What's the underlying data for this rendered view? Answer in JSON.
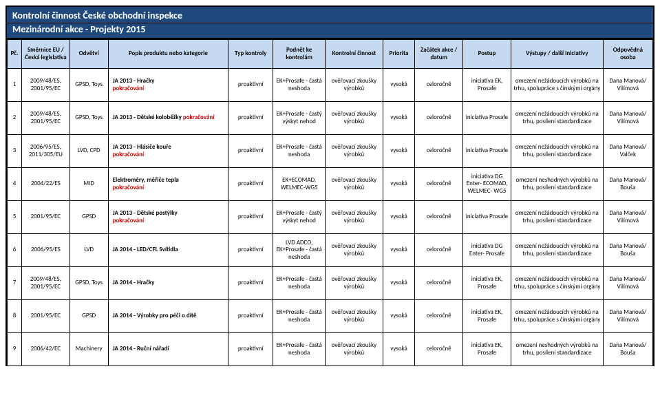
{
  "header": {
    "title": "Kontrolní činnost České obchodní inspekce",
    "subtitle": "Mezinárodní akce - Projekty 2015"
  },
  "columns": [
    "Pč.",
    "Směrnice EU / Česká legislativa",
    "Odvětví",
    "Popis produktu nebo kategorie",
    "Typ kontroly",
    "Podnět ke kontrolám",
    "Kontrolní činnost",
    "Priorita",
    "Začátek akce / datum",
    "Postup",
    "Výstupy / další iniciativy",
    "Odpovědná osoba"
  ],
  "rows": [
    {
      "pc": "1",
      "dir": "2009/48/ES, 2001/95/EC",
      "odv": "GPSD,   Toys",
      "popis_b": "JA 2013 - Hračky",
      "popis_r": "pokračování",
      "typ": "proaktivní",
      "pod": "EK+Prosafe - častá neshoda",
      "cin": "ověřovací zkoušky výrobků",
      "prio": "vysoká",
      "zac": "celoročně",
      "post": "iniciativa EK, Prosafe",
      "vys": "omezení nežádoucích výrobků na trhu, spolupráce s čínskými orgány",
      "odp": "Dana Manová/ Vilímová"
    },
    {
      "pc": "2",
      "dir": "2009/48/ES, 2001/95/EC",
      "odv": "GPSD, Toys",
      "popis_b": "JA 2013 - Dětské koloběžky ",
      "popis_r": "pokračování",
      "popis_inline": true,
      "typ": "proaktivní",
      "pod": "EK+Prosafe - častý výskyt nehod",
      "cin": "ověřovací zkoušky výrobků",
      "prio": "vysoká",
      "zac": "celoročně",
      "post": "iniciativa Prosafe",
      "vys": "omezení nežádoucích výrobků na trhu, posílení standardizace",
      "odp": "Dana Manová/ Vilímová"
    },
    {
      "pc": "3",
      "dir": "2006/95/ES, 2011/305/EU",
      "odv": "LVD, CPD",
      "popis_b": "JA 2013 - Hlásiče kouře",
      "popis_r": "pokračování",
      "typ": "proaktivní",
      "pod": "EK+Prosafe - častá neshoda",
      "cin": "ověřovací zkoušky výrobků",
      "prio": "vysoká",
      "zac": "celoročně",
      "post": "iniciativa Prosafe",
      "vys": "omezení nežádoucích výrobků na trhu, posílení standardizace",
      "odp": "Dana Manová/ Valček"
    },
    {
      "pc": "4",
      "dir": "2004/22/ES",
      "odv": "MID",
      "popis_b": "Elektroměry, měřiče tepla",
      "popis_r": "pokračování",
      "typ": "proaktivní",
      "pod": "EK+ECOMAD, WELMEC-WG5",
      "cin": "ověřovací zkoušky výrobků",
      "prio": "vysoká",
      "zac": "celoročně",
      "post": "iniciativa DG Enter- ECOMAD, WELMEC- WG5",
      "vys": "omezení neshodných výrobků na trhu, posílení standardizace",
      "odp": "Dana Manová/ Bouša"
    },
    {
      "pc": "5",
      "dir": "2001/95/EC",
      "odv": "GPSD",
      "popis_b": "JA 2013 - Dětské postýlky",
      "popis_r": "pokračování",
      "typ": "proaktivní",
      "pod": "EK+Prosafe - častý výskyt nehod",
      "cin": "ověřovací zkoušky výrobků",
      "prio": "vysoká",
      "zac": "celoročně",
      "post": "iniciativa Prosafe",
      "vys": "omezení nežádoucích výrobků na trhu, posílení standardizace",
      "odp": "Dana Manová/ Vilímová"
    },
    {
      "pc": "6",
      "dir": "2006/95/ES",
      "odv": "LVD",
      "popis_b": "JA 2014 - LED/CFL Svítidla",
      "popis_r": "",
      "typ": "proaktivní",
      "pod": "LVD ADCO, EK+Prosafe - častá neshoda",
      "cin": "ověřovací zkoušky výrobků",
      "prio": "vysoká",
      "zac": "celoročně",
      "post": "iniciativa DG Enter- Prosafe",
      "vys": "omezení nežádoucích výrobků na trhu, posílení standardizace",
      "odp": "Dana Manová/ Bouša"
    },
    {
      "pc": "7",
      "dir": "2009/48/ES, 2001/95/EC",
      "odv": "GPSD, Toys",
      "popis_b": "JA 2014 - Hračky",
      "popis_r": "",
      "typ": "proaktivní",
      "pod": "EK+Prosafe - častá neshoda",
      "cin": "ověřovací zkoušky výrobků",
      "prio": "vysoká",
      "zac": "celoročně",
      "post": "iniciativa EK, Prosafe",
      "vys": "omezení nežádoucích výrobků na trhu, spolupráce s čínskými orgány",
      "odp": "Dana Manová/ Vilímová"
    },
    {
      "pc": "8",
      "dir": "2001/95/EC",
      "odv": "GPSD",
      "popis_b": "JA 2014 - Výrobky pro péči o dítě",
      "popis_r": "",
      "typ": "proaktivní",
      "pod": "EK+Prosafe - častá neshoda",
      "cin": "ověřovací zkoušky výrobků",
      "prio": "vysoká",
      "zac": "celoročně",
      "post": "iniciativa EK, Prosafe",
      "vys": "omezení nežádoucích výrobků na trhu, spolupráce s čínskými orgány",
      "odp": "Dana Manová/ Vilímová"
    },
    {
      "pc": "9",
      "dir": "2006/42/EC",
      "odv": "Machinery",
      "popis_b": "JA 2014 - Ruční nářadí",
      "popis_r": "",
      "typ": "proaktivní",
      "pod": "EK+Prosafe - častá neshoda",
      "cin": "ověřovací zkoušky výrobků",
      "prio": "vysoká",
      "zac": "celoročně",
      "post": "iniciativa EK, Prosafe",
      "vys": "omezení neshodných výrobků na trhu, posílení standardizace",
      "odp": "Dana Manová/ Bouša"
    }
  ]
}
